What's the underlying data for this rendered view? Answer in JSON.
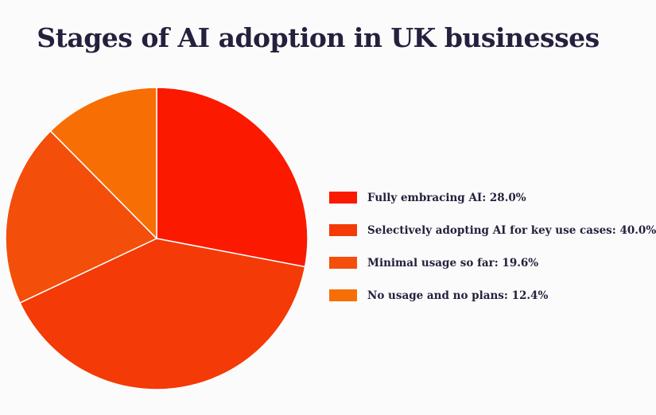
{
  "chart_data": {
    "type": "pie",
    "title": "Stages of AI adoption in UK businesses",
    "slices": [
      {
        "label": "Fully embracing AI",
        "value": 28.0,
        "legend_text": "Fully embracing AI: 28.0%",
        "color": "#fb1a00"
      },
      {
        "label": "Selectively adopting AI for key use cases",
        "value": 40.0,
        "legend_text": "Selectively adopting AI for key use cases: 40.0%",
        "color": "#f43a06"
      },
      {
        "label": "Minimal usage so far",
        "value": 19.6,
        "legend_text": "Minimal usage so far: 19.6%",
        "color": "#f44e0b"
      },
      {
        "label": "No usage and no plans",
        "value": 12.4,
        "legend_text": "No usage and no plans: 12.4%",
        "color": "#f76e04"
      }
    ],
    "start_angle": "12 o'clock",
    "direction": "clockwise",
    "legend_position": "right"
  }
}
